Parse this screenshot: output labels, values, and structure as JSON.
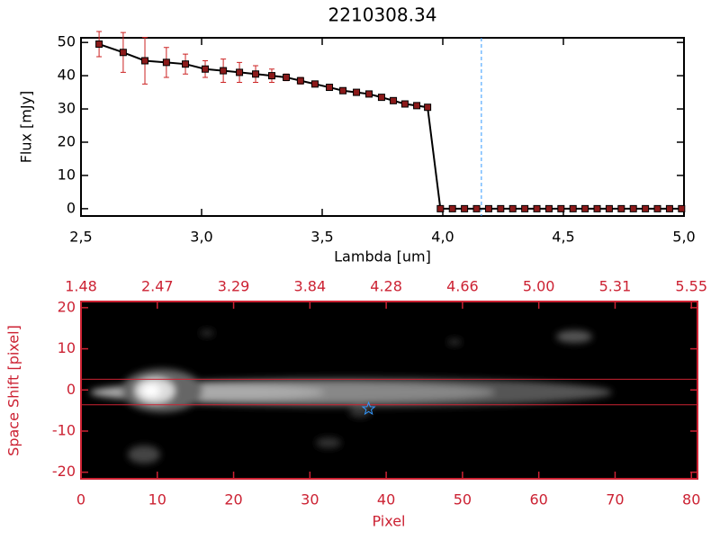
{
  "chart_data": [
    {
      "type": "line",
      "title": "2210308.34",
      "x_label": "Lambda [um]",
      "y_label": "Flux [mJy]",
      "x": [
        2.575,
        2.675,
        2.765,
        2.854,
        2.933,
        3.015,
        3.09,
        3.157,
        3.224,
        3.291,
        3.351,
        3.41,
        3.47,
        3.53,
        3.586,
        3.642,
        3.694,
        3.746,
        3.795,
        3.843,
        3.892,
        3.937,
        3.99,
        4.04,
        4.09,
        4.14,
        4.19,
        4.24,
        4.29,
        4.34,
        4.39,
        4.44,
        4.49,
        4.54,
        4.59,
        4.64,
        4.69,
        4.74,
        4.79,
        4.84,
        4.89,
        4.94,
        4.99
      ],
      "series": [
        {
          "color": "#000000",
          "marker_color": "#8b1a1a",
          "error_color": "#cc2222",
          "values": [
            49.5,
            47,
            44.5,
            44,
            43.5,
            42,
            41.5,
            41,
            40.5,
            40,
            39.5,
            38.5,
            37.5,
            36.5,
            35.5,
            35,
            34.5,
            33.5,
            32.5,
            31.5,
            31,
            30.5,
            0,
            0,
            0,
            0,
            0,
            0,
            0,
            0,
            0,
            0,
            0,
            0,
            0,
            0,
            0,
            0,
            0,
            0,
            0,
            0,
            0
          ],
          "errors": [
            3.8,
            6,
            7,
            4.5,
            3,
            2.5,
            3.5,
            3,
            2.5,
            2,
            1,
            1,
            0.5,
            0.5,
            0.5,
            0.5,
            0.5,
            0.5,
            0.5,
            0.5,
            0.5,
            0.5,
            0,
            0,
            0,
            0,
            0,
            0,
            0,
            0,
            0,
            0,
            0,
            0,
            0,
            0,
            0,
            0,
            0,
            0,
            0,
            0,
            0
          ]
        }
      ],
      "vline": {
        "x": 4.16,
        "color": "#3399ff"
      },
      "xlim": [
        2.5,
        5.0
      ],
      "ylim": [
        -2.2,
        51.4
      ],
      "xticks": [
        {
          "value": 2.5,
          "label": "2,5"
        },
        {
          "value": 3.0,
          "label": "3,0"
        },
        {
          "value": 3.5,
          "label": "3,5"
        },
        {
          "value": 4.0,
          "label": "4,0"
        },
        {
          "value": 4.5,
          "label": "4,5"
        },
        {
          "value": 5.0,
          "label": "5,0"
        }
      ],
      "yticks": [
        0,
        10,
        20,
        30,
        40,
        50
      ]
    },
    {
      "type": "image",
      "x_label": "Pixel",
      "y_label": "Space Shift [pixel]",
      "axis_color": "#cc2233",
      "xlim": [
        0,
        80.8
      ],
      "ylim": [
        -21.6,
        21.5
      ],
      "xticks": [
        0,
        10,
        20,
        30,
        40,
        50,
        60,
        70,
        80
      ],
      "x2ticks": [
        {
          "value": 0,
          "label": "1.48"
        },
        {
          "value": 10,
          "label": "2.47"
        },
        {
          "value": 20,
          "label": "3.29"
        },
        {
          "value": 30,
          "label": "3.84"
        },
        {
          "value": 40,
          "label": "4.28"
        },
        {
          "value": 50,
          "label": "4.66"
        },
        {
          "value": 60,
          "label": "5.00"
        },
        {
          "value": 70,
          "label": "5.31"
        },
        {
          "value": 80,
          "label": "5.55"
        }
      ],
      "yticks": [
        -20,
        -10,
        0,
        10,
        20
      ],
      "hlines": [
        2.6,
        -3.6
      ],
      "hline_color": "#cc2233",
      "marker": {
        "x": 37.7,
        "y": -4.6,
        "color": "#3399ff"
      }
    }
  ]
}
